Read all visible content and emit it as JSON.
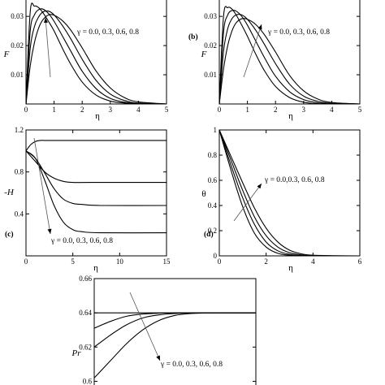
{
  "chart_data": [
    {
      "type": "line",
      "panel_label": "",
      "ylabel": "F",
      "xlabel": "η",
      "xlim": [
        0,
        5
      ],
      "ylim": [
        0,
        0.037
      ],
      "xticks": [
        0,
        1,
        2,
        3,
        4,
        5
      ],
      "yticks": [
        0.01,
        0.02,
        0.03
      ],
      "ytick_labels": [
        "0.01",
        "0.02",
        "0.03"
      ],
      "annotation": "γ = 0.0, 0.3, 0.6, 0.8",
      "series": [
        {
          "x": [
            0,
            0.15,
            0.3,
            0.45,
            0.6,
            0.8,
            1.0,
            1.3,
            1.6,
            2.0,
            2.5,
            3.0,
            3.5,
            4.0,
            5.0
          ],
          "y": [
            0,
            0.0315,
            0.0335,
            0.033,
            0.0313,
            0.0283,
            0.025,
            0.019,
            0.0135,
            0.0075,
            0.003,
            0.001,
            0.0003,
            0,
            0
          ]
        },
        {
          "x": [
            0,
            0.15,
            0.3,
            0.45,
            0.6,
            0.8,
            1.0,
            1.3,
            1.6,
            2.0,
            2.5,
            3.0,
            3.5,
            4.0,
            5.0
          ],
          "y": [
            0,
            0.025,
            0.0305,
            0.0323,
            0.0325,
            0.031,
            0.0283,
            0.0232,
            0.018,
            0.0112,
            0.0052,
            0.0019,
            0.0006,
            0.0001,
            0
          ]
        },
        {
          "x": [
            0,
            0.15,
            0.3,
            0.45,
            0.6,
            0.8,
            1.0,
            1.3,
            1.6,
            2.0,
            2.5,
            3.0,
            3.5,
            4.0,
            5.0
          ],
          "y": [
            0,
            0.019,
            0.0265,
            0.0298,
            0.0315,
            0.0318,
            0.0305,
            0.0268,
            0.0222,
            0.0153,
            0.008,
            0.0034,
            0.0012,
            0.0003,
            0
          ]
        },
        {
          "x": [
            0,
            0.15,
            0.3,
            0.45,
            0.6,
            0.8,
            1.0,
            1.3,
            1.6,
            2.0,
            2.5,
            3.0,
            3.5,
            4.0,
            5.0
          ],
          "y": [
            0,
            0.013,
            0.021,
            0.026,
            0.0288,
            0.0305,
            0.0304,
            0.0285,
            0.0252,
            0.0192,
            0.0112,
            0.0055,
            0.0022,
            0.0007,
            0
          ]
        }
      ]
    },
    {
      "type": "line",
      "panel_label": "(b)",
      "ylabel": "F",
      "xlabel": "η",
      "xlim": [
        0,
        5
      ],
      "ylim": [
        0,
        0.037
      ],
      "xticks": [
        0,
        1,
        2,
        3,
        4,
        5
      ],
      "yticks": [
        0.01,
        0.02,
        0.03
      ],
      "ytick_labels": [
        "0.01",
        "0.02",
        "0.03"
      ],
      "annotation": "γ = 0.0, 0.3, 0.6, 0.8",
      "series": [
        {
          "x": [
            0,
            0.15,
            0.3,
            0.45,
            0.6,
            0.8,
            1.0,
            1.3,
            1.6,
            2.0,
            2.5,
            3.0,
            3.5,
            4.0,
            5.0
          ],
          "y": [
            0,
            0.03,
            0.033,
            0.0325,
            0.0305,
            0.027,
            0.0232,
            0.017,
            0.0115,
            0.006,
            0.0022,
            0.0006,
            0.0001,
            0,
            0
          ]
        },
        {
          "x": [
            0,
            0.15,
            0.3,
            0.45,
            0.6,
            0.8,
            1.0,
            1.3,
            1.6,
            2.0,
            2.5,
            3.0,
            3.5,
            4.0,
            5.0
          ],
          "y": [
            0,
            0.0245,
            0.0305,
            0.032,
            0.0318,
            0.03,
            0.027,
            0.0215,
            0.016,
            0.0095,
            0.0042,
            0.0015,
            0.0004,
            0.0001,
            0
          ]
        },
        {
          "x": [
            0,
            0.15,
            0.3,
            0.45,
            0.6,
            0.8,
            1.0,
            1.3,
            1.6,
            2.0,
            2.5,
            3.0,
            3.5,
            4.0,
            5.0
          ],
          "y": [
            0,
            0.018,
            0.0258,
            0.0292,
            0.0305,
            0.0305,
            0.029,
            0.0252,
            0.0205,
            0.0138,
            0.0068,
            0.0027,
            0.0009,
            0.0002,
            0
          ]
        },
        {
          "x": [
            0,
            0.15,
            0.3,
            0.45,
            0.6,
            0.8,
            1.0,
            1.3,
            1.6,
            2.0,
            2.5,
            3.0,
            3.5,
            4.0,
            5.0
          ],
          "y": [
            0,
            0.012,
            0.02,
            0.025,
            0.0278,
            0.0292,
            0.029,
            0.0272,
            0.0238,
            0.0178,
            0.0098,
            0.0045,
            0.0017,
            0.0005,
            0
          ]
        }
      ]
    },
    {
      "type": "line",
      "panel_label": "(c)",
      "ylabel": "-H",
      "xlabel": "η",
      "xlim": [
        0,
        15
      ],
      "ylim": [
        0,
        1.2
      ],
      "xticks": [
        0,
        5,
        10,
        15
      ],
      "yticks": [
        0.4,
        0.8,
        1.2
      ],
      "ytick_labels": [
        "0.4",
        "0.8",
        "1.2"
      ],
      "annotation": "γ = 0.0, 0.3, 0.6, 0.8",
      "series": [
        {
          "x": [
            0,
            0.5,
            1,
            1.5,
            2,
            3,
            4,
            15
          ],
          "y": [
            1.0,
            1.06,
            1.09,
            1.1,
            1.1,
            1.1,
            1.1,
            1.1
          ]
        },
        {
          "x": [
            0,
            1,
            2,
            3,
            4,
            5,
            7,
            15
          ],
          "y": [
            1.0,
            0.9,
            0.8,
            0.74,
            0.71,
            0.7,
            0.7,
            0.7
          ]
        },
        {
          "x": [
            0,
            1,
            2,
            3,
            4,
            5,
            6,
            8,
            15
          ],
          "y": [
            1.0,
            0.93,
            0.79,
            0.64,
            0.54,
            0.5,
            0.49,
            0.48,
            0.48
          ]
        },
        {
          "x": [
            0,
            1,
            2,
            3,
            4,
            5,
            6,
            8,
            15
          ],
          "y": [
            1.0,
            0.93,
            0.72,
            0.48,
            0.32,
            0.25,
            0.23,
            0.22,
            0.22
          ]
        }
      ]
    },
    {
      "type": "line",
      "panel_label": "(d)",
      "ylabel": "θ",
      "xlabel": "η",
      "xlim": [
        0,
        6
      ],
      "ylim": [
        0,
        1
      ],
      "xticks": [
        0,
        2,
        4,
        6
      ],
      "yticks": [
        0,
        0.2,
        0.4,
        0.6,
        0.8,
        1
      ],
      "ytick_labels": [
        "0",
        "0.2",
        "0.4",
        "0.6",
        "0.8",
        "1"
      ],
      "annotation": "γ = 0.0,0.3, 0.6, 0.8",
      "series": [
        {
          "x": [
            0,
            0.5,
            1,
            1.5,
            2,
            2.5,
            3,
            3.5,
            4,
            5,
            6
          ],
          "y": [
            1.0,
            0.68,
            0.39,
            0.18,
            0.07,
            0.02,
            0.005,
            0.001,
            0,
            0,
            0
          ]
        },
        {
          "x": [
            0,
            0.5,
            1,
            1.5,
            2,
            2.5,
            3,
            3.5,
            4,
            5,
            6
          ],
          "y": [
            1.0,
            0.72,
            0.46,
            0.25,
            0.11,
            0.04,
            0.012,
            0.003,
            0.001,
            0,
            0
          ]
        },
        {
          "x": [
            0,
            0.5,
            1,
            1.5,
            2,
            2.5,
            3,
            3.5,
            4,
            5,
            6
          ],
          "y": [
            1.0,
            0.76,
            0.52,
            0.31,
            0.16,
            0.07,
            0.025,
            0.008,
            0.002,
            0,
            0
          ]
        },
        {
          "x": [
            0,
            0.5,
            1,
            1.5,
            2,
            2.5,
            3,
            3.5,
            4,
            5,
            6
          ],
          "y": [
            1.0,
            0.79,
            0.58,
            0.38,
            0.22,
            0.11,
            0.045,
            0.016,
            0.005,
            0.001,
            0
          ]
        }
      ]
    },
    {
      "type": "line",
      "panel_label": "",
      "ylabel": "Pr",
      "xlabel": "",
      "xlim": [
        0,
        5
      ],
      "ylim": [
        0.595,
        0.66
      ],
      "xticks": [],
      "yticks": [
        0.6,
        0.62,
        0.64,
        0.66
      ],
      "ytick_labels": [
        "0.6",
        "0.62",
        "0.64",
        "0.66"
      ],
      "annotation": "γ = 0.0, 0.3, 0.6, 0.8",
      "series": [
        {
          "x": [
            0,
            0.5,
            1,
            1.5,
            2,
            3,
            4,
            5
          ],
          "y": [
            0.64,
            0.64,
            0.64,
            0.64,
            0.64,
            0.64,
            0.64,
            0.64
          ]
        },
        {
          "x": [
            0,
            0.5,
            1,
            1.5,
            2,
            2.5,
            3,
            4,
            5
          ],
          "y": [
            0.631,
            0.635,
            0.638,
            0.6393,
            0.6398,
            0.64,
            0.64,
            0.64,
            0.64
          ]
        },
        {
          "x": [
            0,
            0.5,
            1,
            1.5,
            2,
            2.5,
            3,
            3.5,
            4,
            5
          ],
          "y": [
            0.62,
            0.627,
            0.633,
            0.637,
            0.6388,
            0.6396,
            0.6399,
            0.64,
            0.64,
            0.64
          ]
        },
        {
          "x": [
            0,
            0.5,
            1,
            1.5,
            2,
            2.5,
            3,
            3.5,
            4,
            5
          ],
          "y": [
            0.602,
            0.612,
            0.622,
            0.63,
            0.6355,
            0.6385,
            0.6396,
            0.6399,
            0.64,
            0.64
          ]
        }
      ]
    }
  ]
}
